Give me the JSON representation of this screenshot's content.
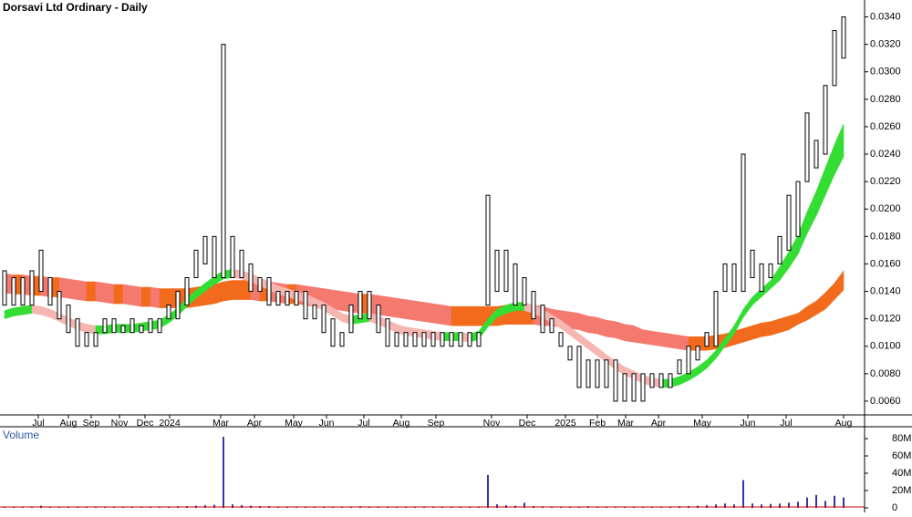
{
  "chart_data": [
    {
      "type": "range",
      "title": "Dorsavi Ltd Ordinary - Daily",
      "xlim": [
        -0.5,
        94.3
      ],
      "xticks": [
        {
          "value": 3.7,
          "label": "Jul"
        },
        {
          "value": 7,
          "label": "Aug"
        },
        {
          "value": 9.5,
          "label": "Sep"
        },
        {
          "value": 12.6,
          "label": "Nov"
        },
        {
          "value": 15.4,
          "label": "Dec"
        },
        {
          "value": 18.1,
          "label": "2024"
        },
        {
          "value": 23.7,
          "label": "Mar"
        },
        {
          "value": 27.4,
          "label": "Apr"
        },
        {
          "value": 31.7,
          "label": "May"
        },
        {
          "value": 35.3,
          "label": "Jun"
        },
        {
          "value": 39.4,
          "label": "Jul"
        },
        {
          "value": 43.5,
          "label": "Aug"
        },
        {
          "value": 47.3,
          "label": "Sep"
        },
        {
          "value": 53.4,
          "label": "Nov"
        },
        {
          "value": 57.3,
          "label": "Dec"
        },
        {
          "value": 61.5,
          "label": "2025"
        },
        {
          "value": 65,
          "label": "Feb"
        },
        {
          "value": 68.1,
          "label": "Mar"
        },
        {
          "value": 71.7,
          "label": "Apr"
        },
        {
          "value": 76.5,
          "label": "May"
        },
        {
          "value": 81.5,
          "label": "Jun"
        },
        {
          "value": 85.7,
          "label": "Jul"
        },
        {
          "value": 92,
          "label": "Aug"
        }
      ],
      "ylim": [
        0.005,
        0.0349
      ],
      "yticks": [
        {
          "value": 0.006,
          "label": "0.0060"
        },
        {
          "value": 0.008,
          "label": "0.0080"
        },
        {
          "value": 0.01,
          "label": "0.0100"
        },
        {
          "value": 0.012,
          "label": "0.0120"
        },
        {
          "value": 0.014,
          "label": "0.0140"
        },
        {
          "value": 0.016,
          "label": "0.0160"
        },
        {
          "value": 0.018,
          "label": "0.0180"
        },
        {
          "value": 0.02,
          "label": "0.0200"
        },
        {
          "value": 0.022,
          "label": "0.0220"
        },
        {
          "value": 0.024,
          "label": "0.0240"
        },
        {
          "value": 0.026,
          "label": "0.0260"
        },
        {
          "value": 0.028,
          "label": "0.0280"
        },
        {
          "value": 0.03,
          "label": "0.0300"
        },
        {
          "value": 0.032,
          "label": "0.0320"
        },
        {
          "value": 0.034,
          "label": "0.0340"
        }
      ],
      "bar_color": "#000000",
      "high": [
        0.0155,
        0.015,
        0.015,
        0.0155,
        0.017,
        0.015,
        0.014,
        0.013,
        0.012,
        0.011,
        0.011,
        0.012,
        0.012,
        0.0115,
        0.012,
        0.0115,
        0.012,
        0.012,
        0.013,
        0.014,
        0.015,
        0.017,
        0.018,
        0.018,
        0.032,
        0.018,
        0.017,
        0.016,
        0.015,
        0.015,
        0.014,
        0.014,
        0.014,
        0.014,
        0.013,
        0.013,
        0.012,
        0.011,
        0.013,
        0.014,
        0.014,
        0.013,
        0.012,
        0.011,
        0.011,
        0.011,
        0.011,
        0.011,
        0.011,
        0.011,
        0.011,
        0.011,
        0.011,
        0.021,
        0.017,
        0.017,
        0.016,
        0.015,
        0.014,
        0.013,
        0.012,
        0.011,
        0.01,
        0.01,
        0.009,
        0.009,
        0.009,
        0.009,
        0.008,
        0.008,
        0.008,
        0.008,
        0.008,
        0.008,
        0.009,
        0.01,
        0.01,
        0.011,
        0.014,
        0.016,
        0.016,
        0.024,
        0.017,
        0.016,
        0.016,
        0.018,
        0.021,
        0.022,
        0.027,
        0.025,
        0.029,
        0.033,
        0.034
      ],
      "low": [
        0.013,
        0.013,
        0.013,
        0.013,
        0.014,
        0.013,
        0.012,
        0.011,
        0.01,
        0.01,
        0.01,
        0.011,
        0.011,
        0.011,
        0.011,
        0.011,
        0.011,
        0.011,
        0.012,
        0.012,
        0.013,
        0.015,
        0.016,
        0.015,
        0.015,
        0.015,
        0.015,
        0.014,
        0.014,
        0.013,
        0.013,
        0.013,
        0.013,
        0.012,
        0.012,
        0.011,
        0.01,
        0.01,
        0.011,
        0.012,
        0.012,
        0.011,
        0.01,
        0.01,
        0.01,
        0.01,
        0.01,
        0.01,
        0.01,
        0.01,
        0.01,
        0.01,
        0.01,
        0.013,
        0.014,
        0.014,
        0.013,
        0.013,
        0.012,
        0.011,
        0.011,
        0.01,
        0.009,
        0.007,
        0.007,
        0.007,
        0.007,
        0.006,
        0.006,
        0.006,
        0.006,
        0.007,
        0.007,
        0.007,
        0.008,
        0.008,
        0.009,
        0.01,
        0.01,
        0.014,
        0.014,
        0.014,
        0.015,
        0.014,
        0.015,
        0.016,
        0.017,
        0.018,
        0.022,
        0.023,
        0.024,
        0.029,
        0.031
      ],
      "ribbons": [
        {
          "rise_color": "#f26a1b",
          "fall_color": "#f47a70",
          "upper": [
            0.0153,
            0.0152,
            0.0152,
            0.0151,
            0.0151,
            0.015,
            0.015,
            0.0149,
            0.0148,
            0.0147,
            0.0147,
            0.0146,
            0.0145,
            0.0145,
            0.0144,
            0.0143,
            0.0143,
            0.0142,
            0.0142,
            0.0142,
            0.0142,
            0.0143,
            0.0144,
            0.0145,
            0.0147,
            0.0148,
            0.0148,
            0.0148,
            0.0147,
            0.0147,
            0.0146,
            0.0145,
            0.0145,
            0.0144,
            0.0143,
            0.0142,
            0.0141,
            0.014,
            0.0139,
            0.0138,
            0.0138,
            0.0137,
            0.0136,
            0.0135,
            0.0134,
            0.0133,
            0.0132,
            0.0131,
            0.013,
            0.0129,
            0.0129,
            0.0129,
            0.0129,
            0.0129,
            0.0129,
            0.013,
            0.013,
            0.013,
            0.013,
            0.0129,
            0.0127,
            0.0126,
            0.0125,
            0.0124,
            0.0122,
            0.0121,
            0.0119,
            0.0118,
            0.0116,
            0.0115,
            0.0112,
            0.0111,
            0.011,
            0.0109,
            0.0108,
            0.0107,
            0.0107,
            0.0107,
            0.0108,
            0.0109,
            0.0111,
            0.0113,
            0.0115,
            0.0117,
            0.0118,
            0.012,
            0.0122,
            0.0124,
            0.0129,
            0.0133,
            0.0139,
            0.0146,
            0.0155
          ],
          "lower": [
            0.0139,
            0.0138,
            0.0138,
            0.0137,
            0.0137,
            0.0136,
            0.0136,
            0.0135,
            0.0134,
            0.0133,
            0.0133,
            0.0132,
            0.0131,
            0.0131,
            0.013,
            0.0129,
            0.0129,
            0.0128,
            0.0128,
            0.0128,
            0.0128,
            0.0129,
            0.013,
            0.0131,
            0.0133,
            0.0134,
            0.0134,
            0.0134,
            0.0133,
            0.0133,
            0.0132,
            0.0131,
            0.0131,
            0.013,
            0.0129,
            0.0128,
            0.0127,
            0.0126,
            0.0125,
            0.0124,
            0.0124,
            0.0123,
            0.0122,
            0.0121,
            0.012,
            0.0119,
            0.0118,
            0.0117,
            0.0116,
            0.0115,
            0.0115,
            0.0115,
            0.0115,
            0.0115,
            0.0115,
            0.0116,
            0.0116,
            0.0116,
            0.0116,
            0.0115,
            0.0115,
            0.0114,
            0.0113,
            0.0112,
            0.011,
            0.0109,
            0.0107,
            0.0106,
            0.0104,
            0.0103,
            0.0102,
            0.0101,
            0.01,
            0.0099,
            0.0098,
            0.0097,
            0.0097,
            0.0097,
            0.0098,
            0.0099,
            0.0101,
            0.0103,
            0.0105,
            0.0107,
            0.0108,
            0.011,
            0.0112,
            0.0116,
            0.0119,
            0.0123,
            0.0127,
            0.0134,
            0.0141
          ]
        },
        {
          "rise_color": "#33dd33",
          "fall_color": "#f5b5b0",
          "upper": [
            0.0126,
            0.0128,
            0.0129,
            0.013,
            0.0129,
            0.0127,
            0.0124,
            0.0121,
            0.0118,
            0.0116,
            0.0115,
            0.0115,
            0.0116,
            0.0116,
            0.0116,
            0.0117,
            0.0118,
            0.0119,
            0.0123,
            0.0128,
            0.0135,
            0.0141,
            0.0146,
            0.0151,
            0.0155,
            0.0156,
            0.0155,
            0.0153,
            0.015,
            0.0147,
            0.0144,
            0.0142,
            0.014,
            0.0138,
            0.0135,
            0.0132,
            0.0128,
            0.0124,
            0.0122,
            0.0123,
            0.0124,
            0.0122,
            0.0119,
            0.0116,
            0.0114,
            0.0113,
            0.0112,
            0.0111,
            0.011,
            0.011,
            0.011,
            0.0109,
            0.0111,
            0.012,
            0.0127,
            0.013,
            0.0132,
            0.0132,
            0.013,
            0.0127,
            0.0123,
            0.0119,
            0.0114,
            0.0109,
            0.0104,
            0.0099,
            0.0094,
            0.0089,
            0.0085,
            0.0082,
            0.0079,
            0.0077,
            0.0076,
            0.0076,
            0.0078,
            0.0081,
            0.0085,
            0.009,
            0.0097,
            0.0106,
            0.0115,
            0.0127,
            0.0136,
            0.0142,
            0.0148,
            0.0158,
            0.0169,
            0.0181,
            0.0198,
            0.0213,
            0.023,
            0.0247,
            0.0262
          ],
          "lower": [
            0.012,
            0.0122,
            0.0123,
            0.0124,
            0.0123,
            0.0121,
            0.0118,
            0.0115,
            0.0112,
            0.011,
            0.0109,
            0.0109,
            0.011,
            0.011,
            0.011,
            0.0111,
            0.0112,
            0.0113,
            0.0117,
            0.0122,
            0.0129,
            0.0135,
            0.014,
            0.0145,
            0.0149,
            0.015,
            0.0149,
            0.0147,
            0.0144,
            0.0141,
            0.0138,
            0.0136,
            0.0134,
            0.0132,
            0.0129,
            0.0126,
            0.0122,
            0.0118,
            0.0116,
            0.0117,
            0.0118,
            0.0116,
            0.0113,
            0.011,
            0.0108,
            0.0107,
            0.0106,
            0.0105,
            0.0104,
            0.0104,
            0.0104,
            0.0103,
            0.0105,
            0.0114,
            0.0121,
            0.0124,
            0.0126,
            0.0126,
            0.0124,
            0.0121,
            0.0117,
            0.0113,
            0.0108,
            0.0103,
            0.0098,
            0.0093,
            0.0088,
            0.0083,
            0.0079,
            0.0076,
            0.0073,
            0.0071,
            0.007,
            0.007,
            0.0072,
            0.0075,
            0.0079,
            0.0084,
            0.0091,
            0.01,
            0.0109,
            0.0121,
            0.013,
            0.0136,
            0.0142,
            0.0148,
            0.0157,
            0.0167,
            0.0182,
            0.0195,
            0.021,
            0.0225,
            0.0238
          ]
        }
      ]
    },
    {
      "type": "bar",
      "title": "Volume",
      "color": "#3333aa",
      "xlim": [
        -0.5,
        94.3
      ],
      "ylim": [
        0,
        91600000
      ],
      "yticks": [
        0,
        {
          "value": 20000000,
          "label": "20M"
        },
        {
          "value": 40000000,
          "label": "40M"
        },
        {
          "value": 60000000,
          "label": "60M"
        },
        {
          "value": 80000000,
          "label": "80M"
        }
      ],
      "values": [
        1500000,
        1200000,
        1000000,
        1300000,
        2500000,
        1200000,
        1000000,
        900000,
        1100000,
        1000000,
        800000,
        900000,
        1000000,
        900000,
        1100000,
        900000,
        1000000,
        1200000,
        1500000,
        1800000,
        2000000,
        2500000,
        3000000,
        3500000,
        82000000,
        4000000,
        3000000,
        2500000,
        2000000,
        1800000,
        1500000,
        1400000,
        1300000,
        1200000,
        1000000,
        1000000,
        1100000,
        1000000,
        1500000,
        1800000,
        1500000,
        1200000,
        1000000,
        900000,
        900000,
        800000,
        900000,
        800000,
        900000,
        800000,
        900000,
        800000,
        1000000,
        38000000,
        4000000,
        3000000,
        2500000,
        6000000,
        2000000,
        1800000,
        1500000,
        1200000,
        1000000,
        1500000,
        1800000,
        1500000,
        1200000,
        1500000,
        1200000,
        1000000,
        1300000,
        1500000,
        1400000,
        1500000,
        1800000,
        2000000,
        2500000,
        3000000,
        4000000,
        5000000,
        4000000,
        32000000,
        5000000,
        4000000,
        4500000,
        5000000,
        6000000,
        7000000,
        12000000,
        15000000,
        8000000,
        14000000,
        12000000
      ]
    }
  ]
}
